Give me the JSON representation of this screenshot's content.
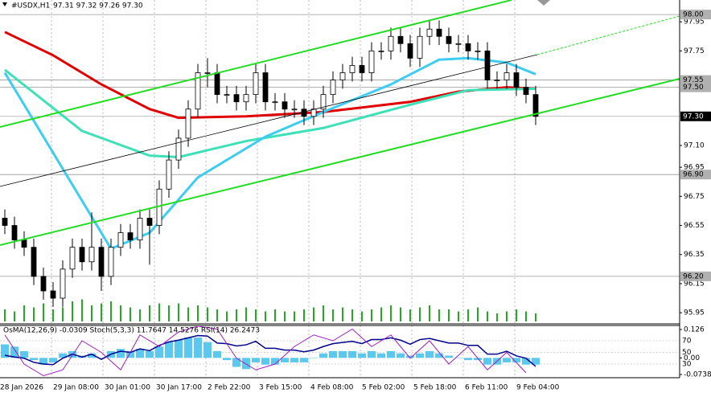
{
  "chart_data": {
    "type": "candlestick",
    "title": "#USDX,H1",
    "quote": "97.31 97.32 97.26 97.30",
    "ylim": [
      95.89,
      98.1
    ],
    "yticks": [
      95.95,
      96.15,
      96.35,
      96.55,
      96.75,
      96.95,
      {
        "value": 97.1,
        "label": "97.10"
      },
      97.75,
      97.95
    ],
    "levels": [
      {
        "value": 98,
        "label": "98.00"
      },
      {
        "value": 97.55,
        "label": "97.55"
      },
      {
        "value": 97.5,
        "label": "97.50"
      },
      {
        "value": 96.9,
        "label": "96.90"
      },
      {
        "value": 96.2,
        "label": "96.20"
      }
    ],
    "last_price": {
      "value": 97.3,
      "label": "97.30"
    },
    "time_labels": [
      "28 Jan 2026",
      "29 Jan 08:00",
      "30 Jan 01:00",
      "30 Jan 17:00",
      "2 Feb 22:00",
      "3 Feb 15:00",
      "4 Feb 08:00",
      "5 Feb 02:00",
      "5 Feb 18:00",
      "6 Feb 11:00",
      "9 Feb 04:00"
    ],
    "candles": {
      "open": [
        96.6,
        96.55,
        96.45,
        96.4,
        96.2,
        96.1,
        96.05,
        96.25,
        96.4,
        96.3,
        96.4,
        96.2,
        96.4,
        96.5,
        96.45,
        96.6,
        96.55,
        96.8,
        97.0,
        97.15,
        97.35,
        97.6,
        97.6,
        97.45,
        97.45,
        97.4,
        97.45,
        97.6,
        97.4,
        97.4,
        97.35,
        97.35,
        97.3,
        97.35,
        97.45,
        97.55,
        97.6,
        97.65,
        97.6,
        97.75,
        97.75,
        97.85,
        97.8,
        97.7,
        97.85,
        97.9,
        97.85,
        97.8,
        97.8,
        97.75,
        97.75,
        97.55,
        97.55,
        97.6,
        97.5,
        97.45
      ],
      "high": [
        96.66,
        96.61,
        96.51,
        96.46,
        96.26,
        96.16,
        96.31,
        96.46,
        96.46,
        96.64,
        96.46,
        96.46,
        96.56,
        96.56,
        96.66,
        96.66,
        96.86,
        97.06,
        97.21,
        97.41,
        97.66,
        97.7,
        97.66,
        97.51,
        97.51,
        97.51,
        97.66,
        97.66,
        97.46,
        97.46,
        97.41,
        97.41,
        97.41,
        97.51,
        97.61,
        97.66,
        97.71,
        97.71,
        97.81,
        97.81,
        97.91,
        97.91,
        97.86,
        97.91,
        97.96,
        97.96,
        97.91,
        97.86,
        97.86,
        97.81,
        97.81,
        97.61,
        97.66,
        97.66,
        97.56,
        97.51
      ],
      "low": [
        96.49,
        96.39,
        96.34,
        96.14,
        96.04,
        95.99,
        95.99,
        96.19,
        96.24,
        96.24,
        96.1,
        96.14,
        96.34,
        96.39,
        96.39,
        96.28,
        96.49,
        96.74,
        96.94,
        97.09,
        97.29,
        97.5,
        97.39,
        97.39,
        97.34,
        97.34,
        97.39,
        97.34,
        97.34,
        97.29,
        97.29,
        97.24,
        97.24,
        97.29,
        97.39,
        97.49,
        97.54,
        97.54,
        97.54,
        97.69,
        97.69,
        97.74,
        97.64,
        97.64,
        97.79,
        97.79,
        97.74,
        97.74,
        97.69,
        97.69,
        97.49,
        97.49,
        97.49,
        97.44,
        97.39,
        97.24
      ],
      "close": [
        96.55,
        96.45,
        96.4,
        96.2,
        96.1,
        96.05,
        96.25,
        96.4,
        96.3,
        96.4,
        96.2,
        96.4,
        96.5,
        96.45,
        96.6,
        96.55,
        96.8,
        97.0,
        97.15,
        97.35,
        97.6,
        97.6,
        97.45,
        97.45,
        97.4,
        97.45,
        97.6,
        97.4,
        97.4,
        97.35,
        97.35,
        97.3,
        97.35,
        97.45,
        97.55,
        97.6,
        97.65,
        97.6,
        97.75,
        97.75,
        97.85,
        97.8,
        97.7,
        97.85,
        97.9,
        97.85,
        97.8,
        97.8,
        97.75,
        97.75,
        97.55,
        97.55,
        97.6,
        97.5,
        97.45,
        97.3
      ]
    },
    "moving_averages": [
      {
        "color": "#e00000",
        "x": [
          0,
          5,
          10,
          15,
          18,
          25,
          33,
          42,
          47,
          52,
          55
        ],
        "values": [
          97.88,
          97.72,
          97.52,
          97.35,
          97.29,
          97.3,
          97.33,
          97.4,
          97.47,
          97.5,
          97.49
        ]
      },
      {
        "color": "#3ee0b8",
        "x": [
          0,
          8,
          15,
          18,
          25,
          33,
          42,
          48,
          55
        ],
        "values": [
          97.62,
          97.2,
          97.03,
          97.02,
          97.13,
          97.22,
          97.38,
          97.48,
          97.49
        ]
      },
      {
        "color": "#3ccdf0",
        "x": [
          0,
          11,
          15,
          20,
          27,
          33,
          40,
          45,
          48,
          52,
          55
        ],
        "values": [
          97.6,
          96.39,
          96.5,
          96.88,
          97.16,
          97.33,
          97.52,
          97.69,
          97.7,
          97.67,
          97.59
        ]
      }
    ],
    "volume": {
      "color": "#22aa22",
      "vlim": [
        0,
        100
      ],
      "values": [
        30,
        25,
        40,
        35,
        45,
        30,
        35,
        50,
        55,
        40,
        45,
        50,
        40,
        35,
        30,
        40,
        45,
        40,
        45,
        35,
        40,
        35,
        30,
        25,
        30,
        35,
        30,
        25,
        30,
        25,
        25,
        30,
        35,
        40,
        30,
        35,
        30,
        25,
        30,
        35,
        40,
        35,
        30,
        35,
        40,
        30,
        30,
        25,
        30,
        35,
        25,
        20,
        25,
        30,
        25,
        20
      ]
    },
    "indicator": {
      "label": "OsMA(12,26,9) -0.0309 Stoch(5,3,3) 11.7647 14.5276 RSI(14) 26.2473",
      "osma_lim": [
        -0.0738,
        0.126
      ],
      "osma_ticks": [
        0.126,
        {
          "value": 0,
          "label": "0.00"
        },
        -0.0738
      ],
      "osma_color": "#5bc8f0",
      "osma": [
        0.06,
        0.05,
        0.03,
        -0.01,
        -0.03,
        -0.02,
        0.02,
        0.03,
        0.01,
        0.02,
        0.0,
        0.03,
        0.04,
        0.03,
        0.04,
        0.03,
        0.05,
        0.07,
        0.08,
        0.09,
        0.09,
        0.07,
        0.03,
        -0.01,
        -0.04,
        -0.05,
        -0.02,
        -0.03,
        -0.03,
        -0.02,
        -0.02,
        -0.02,
        0.0,
        0.02,
        0.03,
        0.03,
        0.03,
        0.02,
        0.03,
        0.02,
        0.03,
        0.02,
        0.01,
        0.02,
        0.03,
        0.02,
        0.01,
        0.0,
        -0.01,
        -0.01,
        -0.03,
        -0.03,
        -0.02,
        -0.02,
        -0.03,
        -0.03
      ],
      "osc_lim": [
        0,
        100
      ],
      "osc_ticks": [
        70,
        50,
        30
      ],
      "rsi_color": "#00008b",
      "rsi": [
        45,
        42,
        40,
        33,
        30,
        29,
        40,
        47,
        42,
        47,
        38,
        47,
        52,
        50,
        56,
        53,
        62,
        68,
        71,
        75,
        79,
        78,
        66,
        65,
        61,
        63,
        69,
        57,
        57,
        54,
        54,
        51,
        54,
        60,
        65,
        67,
        69,
        65,
        72,
        72,
        75,
        71,
        64,
        72,
        74,
        70,
        66,
        66,
        62,
        62,
        47,
        47,
        52,
        44,
        40,
        26
      ],
      "stoch_color": "#9b1fbf",
      "stoch_x": [
        0,
        2,
        4,
        6,
        8,
        10,
        12,
        14,
        16,
        18,
        20,
        22,
        24,
        26,
        28,
        30,
        32,
        34,
        36,
        38,
        40,
        42,
        44,
        46,
        48,
        50,
        52,
        54
      ],
      "stoch": [
        80,
        30,
        10,
        20,
        70,
        50,
        20,
        80,
        60,
        85,
        95,
        90,
        40,
        20,
        30,
        60,
        80,
        70,
        90,
        60,
        80,
        40,
        70,
        30,
        60,
        20,
        50,
        15
      ]
    }
  }
}
